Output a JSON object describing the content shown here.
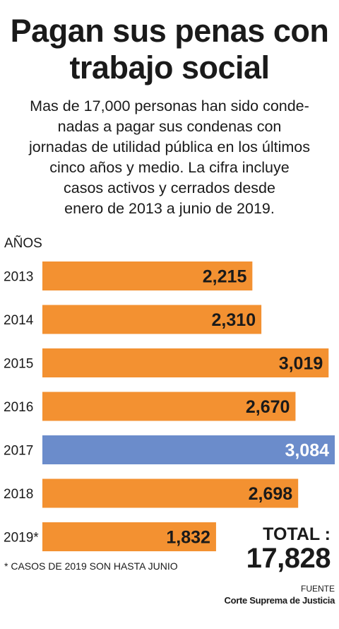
{
  "header": {
    "title": "Pagan sus penas con\ntrabajo social",
    "subtitle": "Mas de 17,000 personas han sido conde-\nnadas a pagar sus condenas con\njornadas de utilidad pública en los últimos\ncinco años y medio. La cifra incluye\ncasos activos y cerrados desde\nenero de 2013 a junio de 2019."
  },
  "chart_data": {
    "type": "bar",
    "orientation": "horizontal",
    "title": "Pagan sus penas con trabajo social",
    "ylabel": "AÑOS",
    "categories": [
      "2013",
      "2014",
      "2015",
      "2016",
      "2017",
      "2018",
      "2019*"
    ],
    "values": [
      2215,
      2310,
      3019,
      2670,
      3084,
      2698,
      1832
    ],
    "value_labels": [
      "2,215",
      "2,310",
      "3,019",
      "2,670",
      "3,084",
      "2,698",
      "1,832"
    ],
    "xlim": [
      0,
      3084
    ],
    "grid": false,
    "colors": {
      "default_bar": "#f39131",
      "highlight_bar": "#6b8ccb",
      "label_dark": "#1a1a1a",
      "label_light": "#ffffff"
    },
    "highlight_category": "2017"
  },
  "footer": {
    "note": "* CASOS DE 2019 SON HASTA JUNIO",
    "total_label": "TOTAL :",
    "total_value": "17,828",
    "source_label": "FUENTE",
    "source_value": "Corte Suprema de Justicia"
  }
}
